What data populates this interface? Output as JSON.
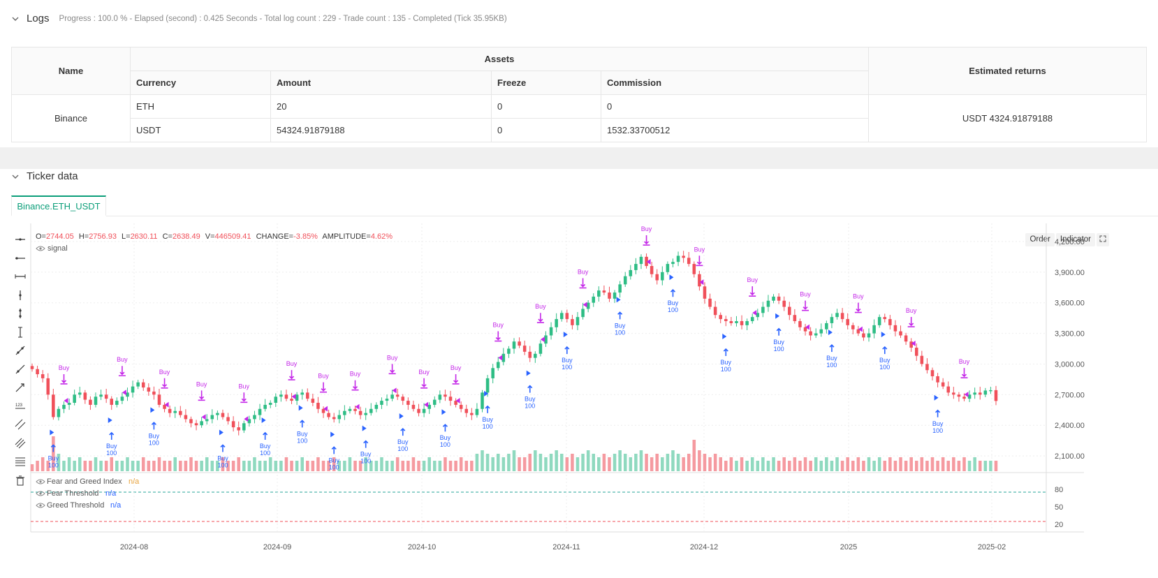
{
  "logs": {
    "title": "Logs",
    "summary": "Progress : 100.0 % - Elapsed (second) : 0.425   Seconds - Total log count : 229 - Trade count : 135 - Completed (Tick 35.95KB)"
  },
  "assets_table": {
    "headers": {
      "name": "Name",
      "assets": "Assets",
      "estimated": "Estimated returns",
      "currency": "Currency",
      "amount": "Amount",
      "freeze": "Freeze",
      "commission": "Commission"
    },
    "exchange": "Binance",
    "rows": [
      {
        "currency": "ETH",
        "amount": "20",
        "freeze": "0",
        "commission": "0"
      },
      {
        "currency": "USDT",
        "amount": "54324.91879188",
        "freeze": "0",
        "commission": "1532.33700512"
      }
    ],
    "estimated_returns": "USDT 4324.91879188"
  },
  "ticker": {
    "title": "Ticker data",
    "tab": "Binance.ETH_USDT",
    "buttons": {
      "order": "Order",
      "indicator": "Indicator"
    },
    "ohlc": {
      "o_label": "O=",
      "o": "2744.05",
      "h_label": "H=",
      "h": "2756.93",
      "l_label": "L=",
      "l": "2630.11",
      "c_label": "C=",
      "c": "2638.49",
      "v_label": "V=",
      "v": "446509.41",
      "change_label": "CHANGE=",
      "change": "-3.85%",
      "amp_label": "AMPLITUDE=",
      "amp": "4.62%"
    },
    "signal_label": "signal",
    "indicators": [
      {
        "name": "Fear and Greed Index",
        "value": "n/a",
        "color": "#e8a33d"
      },
      {
        "name": "Fear Threshold",
        "value": "n/a",
        "color": "#2962ff"
      },
      {
        "name": "Greed Threshold",
        "value": "n/a",
        "color": "#2962ff"
      }
    ]
  },
  "colors": {
    "up": "#26a69a",
    "up_candle": "#2ebd85",
    "down": "#f0505a",
    "buy_marker": "#2962ff",
    "sell_marker": "#c428e8",
    "accent": "#0b9e79"
  },
  "chart_data": {
    "type": "candlestick",
    "symbol": "ETH_USDT",
    "y_ticks": [
      "4,200.00",
      "3,900.00",
      "3,600.00",
      "3,300.00",
      "3,000.00",
      "2,700.00",
      "2,400.00",
      "2,100.00"
    ],
    "y_values": [
      4200,
      3900,
      3600,
      3300,
      3000,
      2700,
      2400,
      2100
    ],
    "x_ticks": [
      "2024-08",
      "2024-09",
      "2024-10",
      "2024-11",
      "2024-12",
      "2025",
      "2025-02"
    ],
    "oscillator_ticks": [
      "80",
      "50",
      "20"
    ],
    "oscillator_values": [
      80,
      50,
      20
    ],
    "fear_threshold": 25,
    "greed_threshold": 75,
    "buy_label": "Buy",
    "buy_qty": "100",
    "sell_label": "Buy",
    "closes": [
      2950,
      2900,
      2860,
      2700,
      2480,
      2560,
      2600,
      2620,
      2700,
      2720,
      2650,
      2600,
      2680,
      2700,
      2660,
      2600,
      2640,
      2680,
      2720,
      2780,
      2820,
      2770,
      2730,
      2700,
      2600,
      2560,
      2520,
      2540,
      2500,
      2460,
      2420,
      2400,
      2440,
      2460,
      2500,
      2520,
      2480,
      2440,
      2380,
      2350,
      2420,
      2460,
      2500,
      2560,
      2600,
      2620,
      2680,
      2700,
      2660,
      2640,
      2700,
      2720,
      2660,
      2620,
      2560,
      2520,
      2480,
      2460,
      2500,
      2540,
      2560,
      2540,
      2500,
      2520,
      2560,
      2600,
      2640,
      2660,
      2700,
      2680,
      2640,
      2600,
      2560,
      2520,
      2560,
      2600,
      2650,
      2700,
      2680,
      2640,
      2600,
      2560,
      2520,
      2500,
      2560,
      2720,
      2860,
      2960,
      3020,
      3100,
      3150,
      3220,
      3180,
      3120,
      3060,
      3100,
      3200,
      3280,
      3360,
      3440,
      3500,
      3440,
      3380,
      3460,
      3540,
      3600,
      3660,
      3720,
      3700,
      3640,
      3700,
      3780,
      3860,
      3920,
      3980,
      4050,
      3960,
      3880,
      3820,
      3900,
      3980,
      4000,
      4060,
      4040,
      3980,
      3880,
      3760,
      3640,
      3560,
      3480,
      3440,
      3420,
      3400,
      3420,
      3380,
      3420,
      3460,
      3500,
      3560,
      3620,
      3660,
      3620,
      3560,
      3480,
      3420,
      3360,
      3320,
      3280,
      3300,
      3340,
      3400,
      3460,
      3500,
      3440,
      3380,
      3340,
      3300,
      3260,
      3300,
      3380,
      3460,
      3440,
      3380,
      3320,
      3280,
      3220,
      3160,
      3080,
      3000,
      2940,
      2880,
      2820,
      2780,
      2720,
      2700,
      2680,
      2660,
      2700,
      2720,
      2700,
      2740,
      2744,
      2638
    ],
    "volumes_relative": [
      0.2,
      0.3,
      0.4,
      0.3,
      1.0,
      0.5,
      0.3,
      0.4,
      0.3,
      0.4,
      0.3,
      0.3,
      0.4,
      0.3,
      0.3,
      0.4,
      0.3,
      0.3,
      0.4,
      0.3,
      0.3,
      0.4,
      0.3,
      0.3,
      0.4,
      0.3,
      0.3,
      0.4,
      0.3,
      0.3,
      0.4,
      0.3,
      0.3,
      0.4,
      0.3,
      0.3,
      0.4,
      0.3,
      0.3,
      0.4,
      0.3,
      0.3,
      0.4,
      0.3,
      0.3,
      0.4,
      0.3,
      0.3,
      0.4,
      0.3,
      0.3,
      0.4,
      0.3,
      0.3,
      0.4,
      0.3,
      0.3,
      0.4,
      0.3,
      0.3,
      0.4,
      0.3,
      0.3,
      0.4,
      0.3,
      0.3,
      0.4,
      0.3,
      0.3,
      0.4,
      0.3,
      0.3,
      0.4,
      0.3,
      0.3,
      0.4,
      0.3,
      0.3,
      0.4,
      0.3,
      0.3,
      0.4,
      0.3,
      0.3,
      0.5,
      0.6,
      0.5,
      0.4,
      0.5,
      0.4,
      0.5,
      0.6,
      0.4,
      0.4,
      0.5,
      0.6,
      0.5,
      0.4,
      0.5,
      0.6,
      0.5,
      0.4,
      0.5,
      0.4,
      0.5,
      0.6,
      0.5,
      0.4,
      0.5,
      0.4,
      0.5,
      0.6,
      0.5,
      0.4,
      0.5,
      0.6,
      0.5,
      0.4,
      0.5,
      0.4,
      0.5,
      0.6,
      0.5,
      0.4,
      0.5,
      0.9,
      0.6,
      0.5,
      0.4,
      0.5,
      0.4,
      0.3,
      0.4,
      0.3,
      0.4,
      0.3,
      0.4,
      0.3,
      0.4,
      0.3,
      0.4,
      0.3,
      0.4,
      0.3,
      0.4,
      0.3,
      0.4,
      0.3,
      0.4,
      0.3,
      0.4,
      0.3,
      0.4,
      0.3,
      0.4,
      0.3,
      0.4,
      0.3,
      0.4,
      0.3,
      0.4,
      0.3,
      0.4,
      0.3,
      0.4,
      0.3,
      0.4,
      0.3,
      0.4,
      0.3,
      0.4,
      0.3,
      0.4,
      0.3,
      0.4,
      0.3,
      0.4,
      0.3,
      0.4,
      0.3
    ],
    "buy_signal_indices": [
      4,
      15,
      23,
      36,
      44,
      51,
      57,
      63,
      70,
      78,
      86,
      94,
      101,
      111,
      121,
      131,
      141,
      151,
      161,
      171
    ],
    "sell_signal_indices": [
      6,
      17,
      25,
      32,
      40,
      49,
      55,
      61,
      68,
      74,
      80,
      88,
      96,
      104,
      116,
      126,
      136,
      146,
      156,
      166,
      176
    ]
  }
}
